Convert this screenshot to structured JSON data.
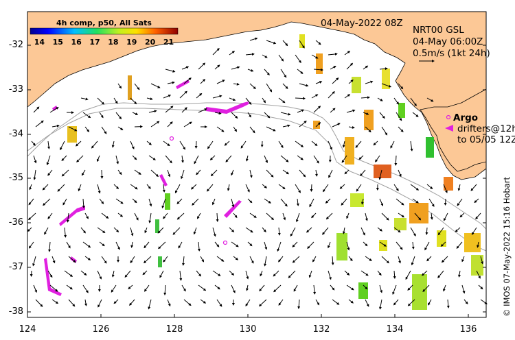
{
  "map": {
    "date_label": "04-May-2022 08Z",
    "model": {
      "name": "NRT00 GSL",
      "time": "04-May 06:00Z",
      "scale": "0.5m/s (1kt 24h)"
    },
    "legend": {
      "argo": "Argo",
      "drifters_line1": "drifters@12h",
      "drifters_line2": "to 05/05 12Z"
    },
    "credit": "© IMOS 07-May-2022 15:16 Hobart",
    "colorbar": {
      "title": "4h comp, p50, All Sats",
      "ticks": [
        "14",
        "15",
        "16",
        "17",
        "18",
        "19",
        "20",
        "21"
      ],
      "min": 13.5,
      "max": 21.5
    },
    "latitudes": [
      "-32",
      "-33",
      "-34",
      "-35",
      "-36",
      "-37",
      "-38"
    ],
    "longitudes": [
      "124",
      "126",
      "128",
      "130",
      "132",
      "134",
      "136"
    ],
    "colors": {
      "land": "#fcc896",
      "ocean": "#ffffff",
      "drifter": "#e020e0",
      "shelf_line": "#a0a0a0"
    }
  }
}
